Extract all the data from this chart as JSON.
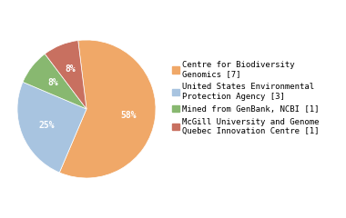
{
  "labels": [
    "Centre for Biodiversity\nGenomics [7]",
    "United States Environmental\nProtection Agency [3]",
    "Mined from GenBank, NCBI [1]",
    "McGill University and Genome\nQuebec Innovation Centre [1]"
  ],
  "values": [
    7,
    3,
    1,
    1
  ],
  "colors": [
    "#f0a868",
    "#a8c4e0",
    "#88b870",
    "#c87060"
  ],
  "pct_labels": [
    "58%",
    "25%",
    "8%",
    "8%"
  ],
  "text_color": "white",
  "pct_fontsize": 7,
  "legend_fontsize": 6.5,
  "background_color": "#ffffff",
  "startangle": 97,
  "counterclock": false
}
